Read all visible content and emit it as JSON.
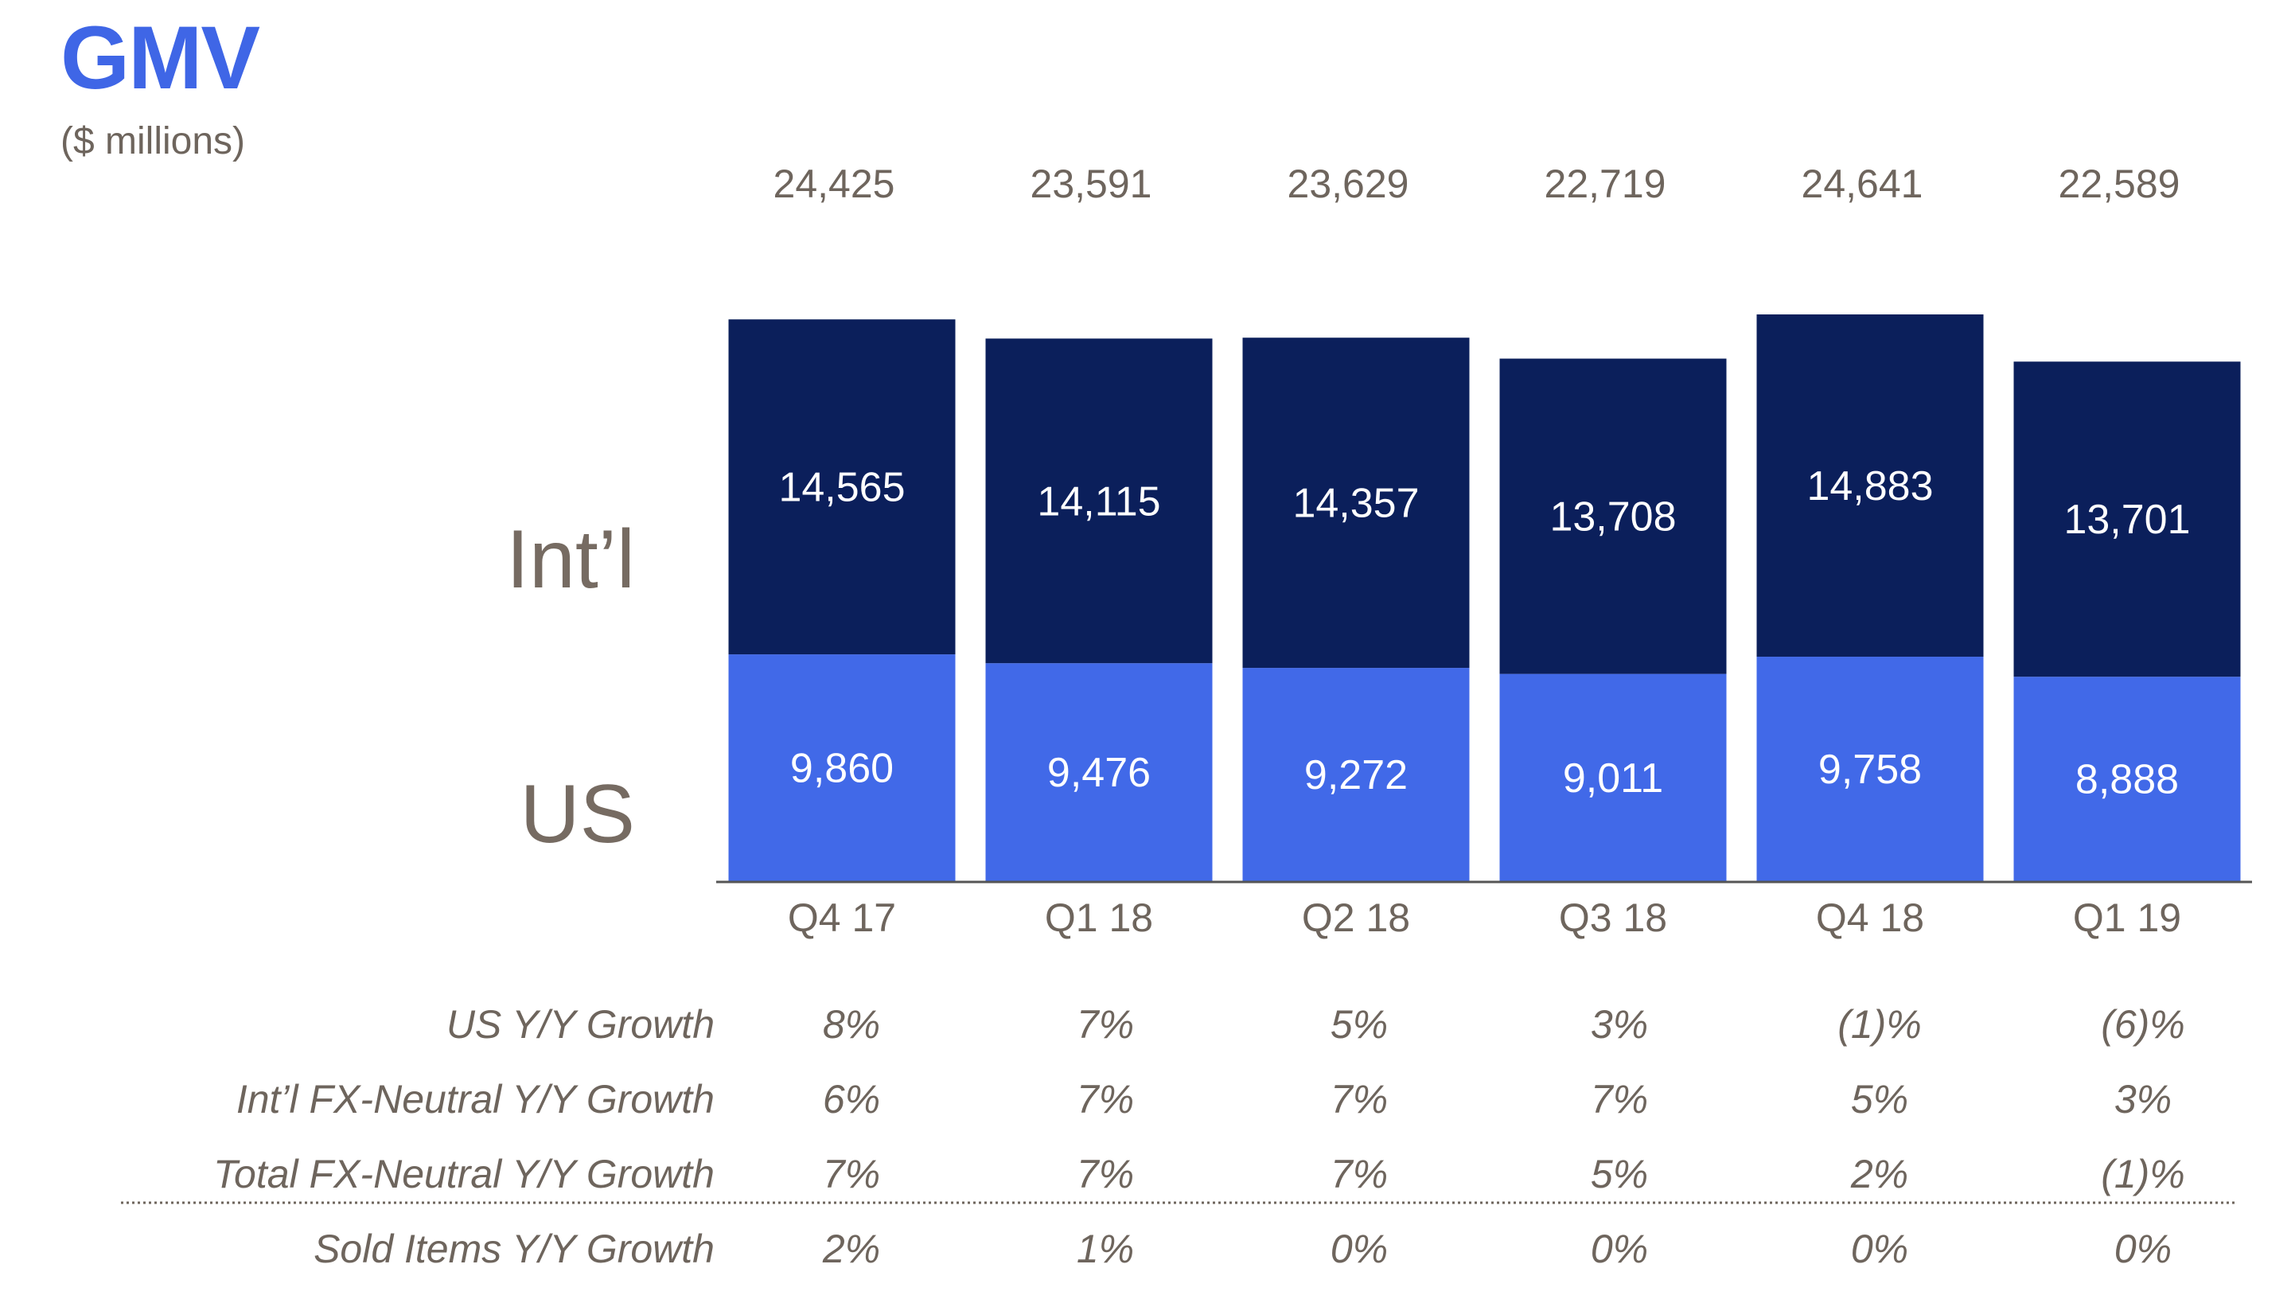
{
  "title": "GMV",
  "subtitle": "($ millions)",
  "chart_data": {
    "type": "bar",
    "stacked": true,
    "categories": [
      "Q4 17",
      "Q1 18",
      "Q2 18",
      "Q3 18",
      "Q4 18",
      "Q1 19"
    ],
    "series": [
      {
        "name": "US",
        "values": [
          9860,
          9476,
          9272,
          9011,
          9758,
          8888
        ],
        "labels": [
          "9,860",
          "9,476",
          "9,272",
          "9,011",
          "9,758",
          "8,888"
        ],
        "color": "#4169e8"
      },
      {
        "name": "Int’l",
        "values": [
          14565,
          14115,
          14357,
          13708,
          14883,
          13701
        ],
        "labels": [
          "14,565",
          "14,115",
          "14,357",
          "13,708",
          "14,883",
          "13,701"
        ],
        "color": "#0b1f5b"
      }
    ],
    "totals": [
      "24,425",
      "23,591",
      "23,629",
      "22,719",
      "24,641",
      "22,589"
    ],
    "ylim": [
      0,
      25000
    ],
    "legend_placement": "left",
    "grid": false
  },
  "growth_table": {
    "rows": [
      {
        "label": "US Y/Y Growth",
        "values": [
          "8%",
          "7%",
          "5%",
          "3%",
          "(1)%",
          "(6)%"
        ]
      },
      {
        "label": "Int’l FX-Neutral Y/Y Growth",
        "values": [
          "6%",
          "7%",
          "7%",
          "7%",
          "5%",
          "3%"
        ]
      },
      {
        "label": "Total FX-Neutral Y/Y Growth",
        "values": [
          "7%",
          "7%",
          "7%",
          "5%",
          "2%",
          "(1)%"
        ]
      },
      {
        "label": "Sold Items Y/Y Growth",
        "values": [
          "2%",
          "1%",
          "0%",
          "0%",
          "0%",
          "0%"
        ]
      }
    ]
  },
  "colors": {
    "accent": "#3f66e6",
    "text": "#6e655d",
    "us": "#4169e8",
    "intl": "#0b1f5b"
  }
}
